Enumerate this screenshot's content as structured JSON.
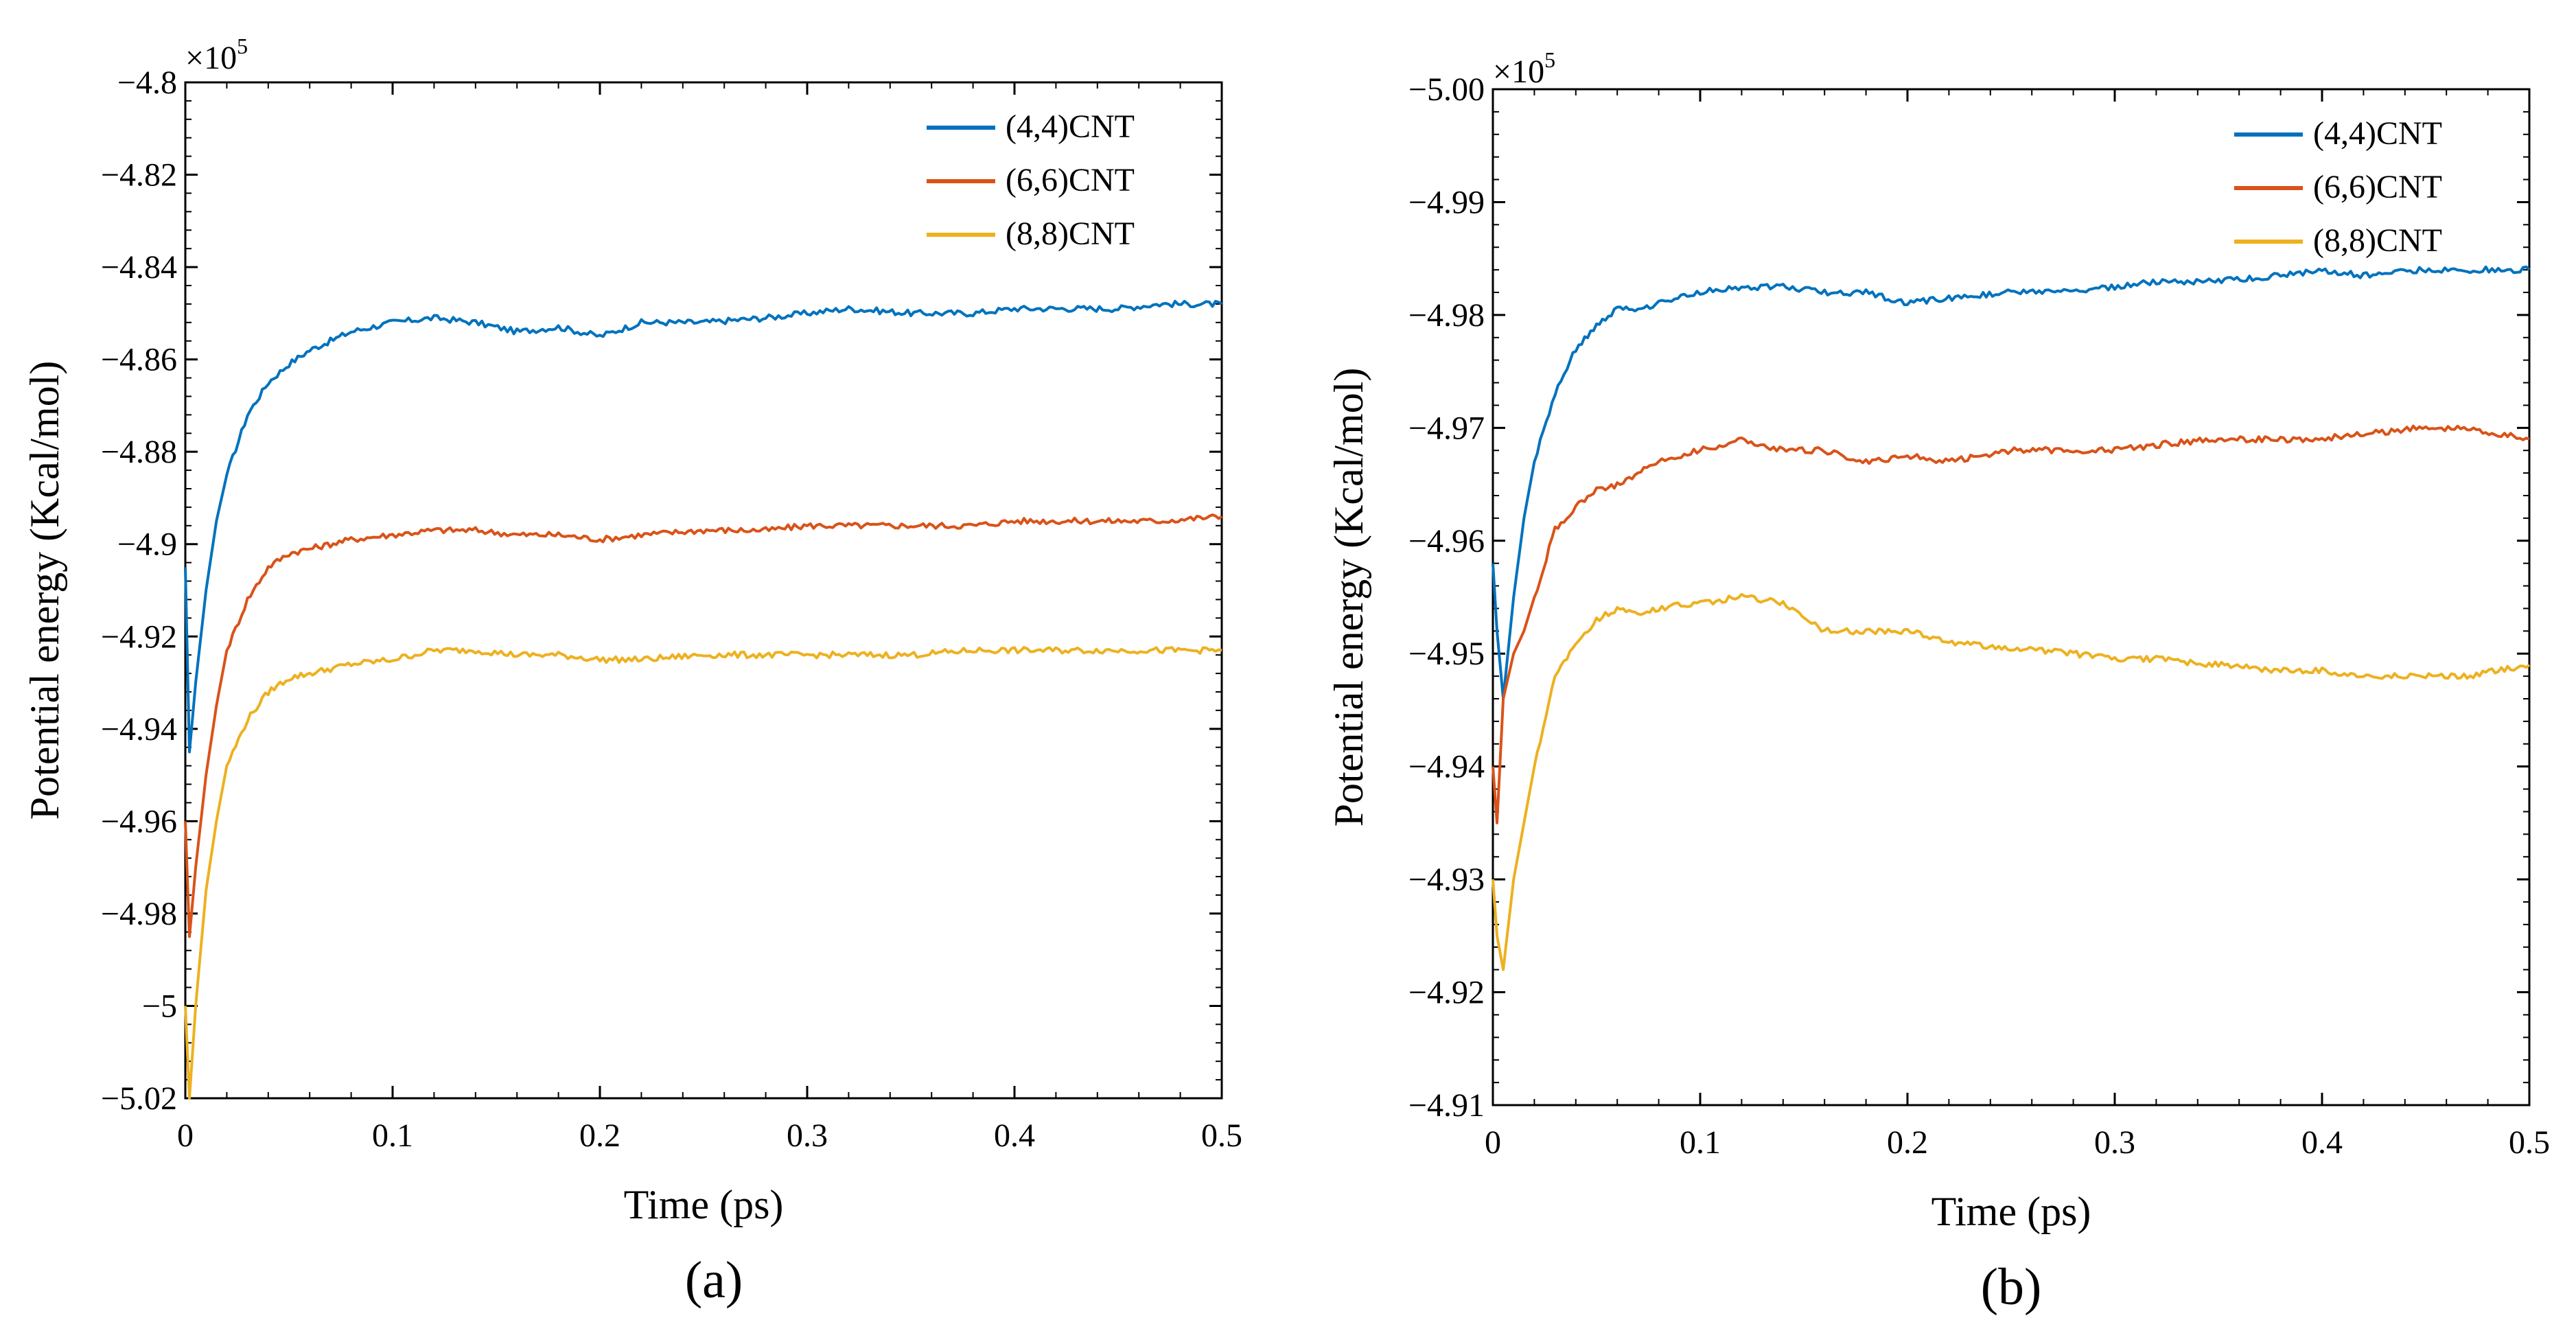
{
  "chart_data": [
    {
      "type": "line",
      "panel_label": "(a)",
      "xlabel": "Time (ps)",
      "ylabel": "Potential energy (Kcal/mol)",
      "xlim": [
        0,
        0.5
      ],
      "ylim": [
        -5.02,
        -4.8
      ],
      "exponent": {
        "base": "×10",
        "power": "5"
      },
      "xticks": [
        0,
        0.1,
        0.2,
        0.3,
        0.4,
        0.5
      ],
      "xtick_labels": [
        "0",
        "0.1",
        "0.2",
        "0.3",
        "0.4",
        "0.5"
      ],
      "yticks": [
        -4.8,
        -4.82,
        -4.84,
        -4.86,
        -4.88,
        -4.9,
        -4.92,
        -4.94,
        -4.96,
        -4.98,
        -5.0,
        -5.02
      ],
      "ytick_labels": [
        "−4.8",
        "−4.82",
        "−4.84",
        "−4.86",
        "−4.88",
        "−4.9",
        "−4.92",
        "−4.94",
        "−4.96",
        "−4.98",
        "−5",
        "−5.02"
      ],
      "legend_position": "top-right",
      "series": [
        {
          "name": "(4,4)CNT",
          "color": "#0072BD",
          "x": [
            0,
            0.002,
            0.005,
            0.01,
            0.015,
            0.02,
            0.03,
            0.04,
            0.05,
            0.06,
            0.07,
            0.08,
            0.1,
            0.12,
            0.14,
            0.16,
            0.18,
            0.2,
            0.22,
            0.25,
            0.28,
            0.3,
            0.32,
            0.35,
            0.38,
            0.4,
            0.42,
            0.45,
            0.47,
            0.5
          ],
          "y": [
            -4.905,
            -4.945,
            -4.93,
            -4.91,
            -4.895,
            -4.885,
            -4.872,
            -4.865,
            -4.861,
            -4.858,
            -4.856,
            -4.854,
            -4.852,
            -4.851,
            -4.852,
            -4.854,
            -4.853,
            -4.855,
            -4.852,
            -4.852,
            -4.851,
            -4.85,
            -4.849,
            -4.85,
            -4.85,
            -4.849,
            -4.849,
            -4.849,
            -4.848,
            -4.848
          ]
        },
        {
          "name": "(6,6)CNT",
          "color": "#D95319",
          "x": [
            0,
            0.002,
            0.005,
            0.01,
            0.015,
            0.02,
            0.03,
            0.04,
            0.05,
            0.06,
            0.07,
            0.08,
            0.1,
            0.12,
            0.14,
            0.16,
            0.18,
            0.2,
            0.22,
            0.25,
            0.28,
            0.3,
            0.32,
            0.35,
            0.38,
            0.4,
            0.42,
            0.45,
            0.47,
            0.5
          ],
          "y": [
            -4.96,
            -4.985,
            -4.97,
            -4.95,
            -4.935,
            -4.923,
            -4.912,
            -4.905,
            -4.902,
            -4.901,
            -4.9,
            -4.899,
            -4.898,
            -4.897,
            -4.897,
            -4.898,
            -4.898,
            -4.899,
            -4.898,
            -4.897,
            -4.897,
            -4.896,
            -4.896,
            -4.896,
            -4.896,
            -4.895,
            -4.895,
            -4.895,
            -4.895,
            -4.894
          ]
        },
        {
          "name": "(8,8)CNT",
          "color": "#EDB120",
          "x": [
            0,
            0.002,
            0.005,
            0.01,
            0.015,
            0.02,
            0.03,
            0.04,
            0.05,
            0.06,
            0.07,
            0.08,
            0.1,
            0.12,
            0.14,
            0.16,
            0.18,
            0.2,
            0.22,
            0.25,
            0.28,
            0.3,
            0.32,
            0.35,
            0.38,
            0.4,
            0.42,
            0.45,
            0.47,
            0.5
          ],
          "y": [
            -5.0,
            -5.02,
            -5.0,
            -4.975,
            -4.96,
            -4.948,
            -4.938,
            -4.932,
            -4.929,
            -4.928,
            -4.927,
            -4.926,
            -4.925,
            -4.923,
            -4.923,
            -4.924,
            -4.924,
            -4.925,
            -4.925,
            -4.924,
            -4.924,
            -4.924,
            -4.924,
            -4.924,
            -4.923,
            -4.923,
            -4.923,
            -4.923,
            -4.923,
            -4.923
          ]
        }
      ]
    },
    {
      "type": "line",
      "panel_label": "(b)",
      "xlabel": "Time (ps)",
      "ylabel": "Potential energy (Kcal/mol)",
      "xlim": [
        0,
        0.5
      ],
      "ylim": [
        -4.91,
        -5.0
      ],
      "exponent": {
        "base": "×10",
        "power": "5"
      },
      "xticks": [
        0,
        0.1,
        0.2,
        0.3,
        0.4,
        0.5
      ],
      "xtick_labels": [
        "0",
        "0.1",
        "0.2",
        "0.3",
        "0.4",
        "0.5"
      ],
      "yticks": [
        -5.0,
        -4.99,
        -4.98,
        -4.97,
        -4.96,
        -4.95,
        -4.94,
        -4.93,
        -4.92,
        -4.91
      ],
      "ytick_labels": [
        "−5.00",
        "−4.99",
        "−4.98",
        "−4.97",
        "−4.96",
        "−4.95",
        "−4.94",
        "−4.93",
        "−4.92",
        "−4.91"
      ],
      "legend_position": "top-right",
      "series": [
        {
          "name": "(4,4)CNT",
          "color": "#0072BD",
          "x": [
            0,
            0.002,
            0.005,
            0.01,
            0.015,
            0.02,
            0.03,
            0.04,
            0.05,
            0.06,
            0.07,
            0.08,
            0.1,
            0.12,
            0.14,
            0.16,
            0.18,
            0.2,
            0.22,
            0.25,
            0.28,
            0.3,
            0.32,
            0.35,
            0.38,
            0.4,
            0.42,
            0.45,
            0.47,
            0.5
          ],
          "y": [
            -4.958,
            -4.952,
            -4.946,
            -4.955,
            -4.962,
            -4.967,
            -4.973,
            -4.977,
            -4.979,
            -4.9805,
            -4.9805,
            -4.981,
            -4.982,
            -4.9825,
            -4.9825,
            -4.982,
            -4.982,
            -4.981,
            -4.9815,
            -4.982,
            -4.982,
            -4.9825,
            -4.983,
            -4.983,
            -4.9835,
            -4.984,
            -4.9835,
            -4.984,
            -4.984,
            -4.984
          ]
        },
        {
          "name": "(6,6)CNT",
          "color": "#D95319",
          "x": [
            0,
            0.002,
            0.005,
            0.01,
            0.015,
            0.02,
            0.03,
            0.04,
            0.05,
            0.06,
            0.07,
            0.08,
            0.1,
            0.12,
            0.14,
            0.16,
            0.18,
            0.2,
            0.22,
            0.25,
            0.28,
            0.3,
            0.32,
            0.35,
            0.38,
            0.4,
            0.42,
            0.45,
            0.47,
            0.5
          ],
          "y": [
            -4.94,
            -4.935,
            -4.946,
            -4.95,
            -4.952,
            -4.955,
            -4.961,
            -4.963,
            -4.9645,
            -4.965,
            -4.966,
            -4.967,
            -4.968,
            -4.969,
            -4.968,
            -4.968,
            -4.967,
            -4.9675,
            -4.967,
            -4.968,
            -4.968,
            -4.968,
            -4.9685,
            -4.969,
            -4.969,
            -4.969,
            -4.9695,
            -4.97,
            -4.97,
            -4.969
          ]
        },
        {
          "name": "(8,8)CNT",
          "color": "#EDB120",
          "x": [
            0,
            0.002,
            0.005,
            0.01,
            0.015,
            0.02,
            0.03,
            0.04,
            0.05,
            0.06,
            0.07,
            0.08,
            0.1,
            0.12,
            0.14,
            0.16,
            0.18,
            0.2,
            0.22,
            0.25,
            0.28,
            0.3,
            0.32,
            0.35,
            0.38,
            0.4,
            0.42,
            0.45,
            0.47,
            0.5
          ],
          "y": [
            -4.93,
            -4.925,
            -4.922,
            -4.93,
            -4.935,
            -4.94,
            -4.948,
            -4.951,
            -4.953,
            -4.954,
            -4.9535,
            -4.954,
            -4.9545,
            -4.955,
            -4.9545,
            -4.952,
            -4.952,
            -4.952,
            -4.951,
            -4.9505,
            -4.95,
            -4.9495,
            -4.9495,
            -4.949,
            -4.9485,
            -4.9485,
            -4.948,
            -4.948,
            -4.948,
            -4.949
          ]
        }
      ]
    }
  ]
}
